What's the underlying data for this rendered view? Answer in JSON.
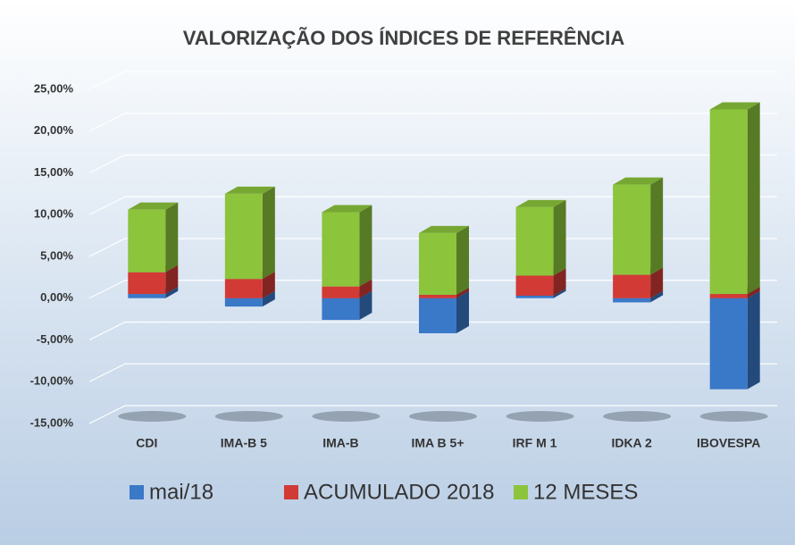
{
  "chart_data": {
    "type": "stacked_bar_3d",
    "title": "VALORIZAÇÃO DOS ÍNDICES DE REFERÊNCIA",
    "categories": [
      "CDI",
      "IMA-B 5",
      "IMA-B",
      "IMA B 5+",
      "IRF M 1",
      "IDKA 2",
      "IBOVESPA"
    ],
    "series": [
      {
        "name": "mai/18",
        "color": "#3a78c8",
        "values": [
          0.5,
          -1.0,
          -2.6,
          -4.2,
          0.3,
          -0.5,
          -10.9
        ]
      },
      {
        "name": "ACUMULADO 2018",
        "color": "#d23a36",
        "values": [
          2.6,
          2.3,
          1.4,
          0.4,
          2.4,
          2.8,
          0.5
        ]
      },
      {
        "name": "12 MESES",
        "color": "#8cc43c",
        "values": [
          7.5,
          10.2,
          8.9,
          7.4,
          8.2,
          10.8,
          22.1
        ]
      }
    ],
    "ylim": [
      -15,
      25
    ],
    "yticks": [
      {
        "value": -15,
        "label": "-15,00%"
      },
      {
        "value": -10,
        "label": "-10,00%"
      },
      {
        "value": -5,
        "label": "-5,00%"
      },
      {
        "value": 0,
        "label": "0,00%"
      },
      {
        "value": 5,
        "label": "5,00%"
      },
      {
        "value": 10,
        "label": "10,00%"
      },
      {
        "value": 15,
        "label": "15,00%"
      },
      {
        "value": 20,
        "label": "20,00%"
      },
      {
        "value": 25,
        "label": "25,00%"
      }
    ],
    "grid": true,
    "legend": "bottom"
  }
}
